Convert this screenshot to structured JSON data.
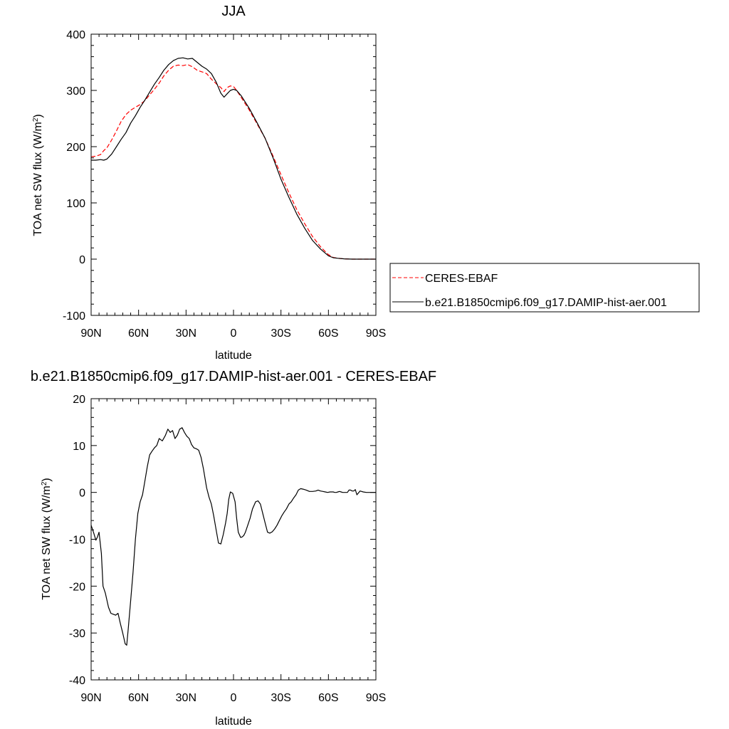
{
  "chart_data": [
    {
      "type": "line",
      "title": "JJA",
      "xlabel": "latitude",
      "ylabel": "TOA net SW flux (W/m",
      "ylabel_sup": "2",
      "ylabel_end": ")",
      "xlim": [
        90,
        -90
      ],
      "ylim": [
        -100,
        400
      ],
      "xticks": [
        {
          "value": 90,
          "label": "90N"
        },
        {
          "value": 60,
          "label": "60N"
        },
        {
          "value": 30,
          "label": "30N"
        },
        {
          "value": 0,
          "label": "0"
        },
        {
          "value": -30,
          "label": "30S"
        },
        {
          "value": -60,
          "label": "60S"
        },
        {
          "value": -90,
          "label": "90S"
        }
      ],
      "yticks": [
        {
          "value": 400,
          "label": "400"
        },
        {
          "value": 300,
          "label": "300"
        },
        {
          "value": 200,
          "label": "200"
        },
        {
          "value": 100,
          "label": "100"
        },
        {
          "value": 0,
          "label": "0"
        },
        {
          "value": -100,
          "label": "-100"
        }
      ],
      "legend": "outside-right",
      "series": [
        {
          "name": "CERES-EBAF",
          "color": "#ff0000",
          "dash": "dashed",
          "x": [
            90,
            87,
            84,
            82,
            80,
            77,
            74,
            71,
            68,
            65,
            62,
            59,
            56,
            53,
            50,
            47,
            44,
            41,
            38,
            35,
            32,
            29,
            26,
            23,
            20,
            17,
            14,
            11,
            8,
            6,
            4,
            2,
            0,
            -2,
            -5,
            -10,
            -15,
            -20,
            -25,
            -30,
            -35,
            -40,
            -45,
            -50,
            -55,
            -60,
            -63,
            -66,
            -70,
            -75,
            -80,
            -85,
            -90
          ],
          "y": [
            182,
            183,
            186,
            193,
            198,
            212,
            228,
            245,
            257,
            265,
            270,
            275,
            282,
            292,
            302,
            313,
            326,
            336,
            343,
            345,
            344,
            346,
            342,
            336,
            333,
            330,
            320,
            312,
            305,
            298,
            305,
            308,
            307,
            300,
            287,
            265,
            240,
            215,
            183,
            150,
            118,
            88,
            63,
            40,
            22,
            8,
            3,
            1.5,
            0.5,
            0,
            0,
            0,
            0
          ]
        },
        {
          "name": "b.e21.B1850cmip6.f09_g17.DAMIP-hist-aer.001",
          "color": "#000000",
          "dash": "solid",
          "x": [
            90,
            87,
            84,
            82,
            80,
            77,
            74,
            71,
            68,
            65,
            62,
            59,
            56,
            53,
            50,
            47,
            44,
            41,
            38,
            35,
            32,
            29,
            26,
            23,
            20,
            17,
            14,
            11,
            8,
            6,
            4,
            2,
            0,
            -2,
            -5,
            -10,
            -15,
            -20,
            -25,
            -30,
            -35,
            -40,
            -45,
            -50,
            -55,
            -60,
            -63,
            -66,
            -70,
            -75,
            -80,
            -85,
            -90
          ],
          "y": [
            176,
            176,
            177,
            176,
            178,
            187,
            200,
            213,
            225,
            242,
            255,
            270,
            283,
            297,
            311,
            323,
            336,
            346,
            353,
            357,
            358,
            356,
            357,
            350,
            343,
            338,
            330,
            315,
            295,
            288,
            294,
            300,
            302,
            300,
            290,
            268,
            242,
            215,
            180,
            142,
            110,
            80,
            55,
            33,
            18,
            6,
            2.5,
            1.5,
            0.5,
            0,
            0,
            0,
            0
          ]
        }
      ]
    },
    {
      "type": "line",
      "title": "b.e21.B1850cmip6.f09_g17.DAMIP-hist-aer.001 - CERES-EBAF",
      "xlabel": "latitude",
      "ylabel": "TOA net SW flux (W/m",
      "ylabel_sup": "2",
      "ylabel_end": ")",
      "xlim": [
        90,
        -90
      ],
      "ylim": [
        -40,
        20
      ],
      "xticks": [
        {
          "value": 90,
          "label": "90N"
        },
        {
          "value": 60,
          "label": "60N"
        },
        {
          "value": 30,
          "label": "30N"
        },
        {
          "value": 0,
          "label": "0"
        },
        {
          "value": -30,
          "label": "30S"
        },
        {
          "value": -60,
          "label": "60S"
        },
        {
          "value": -90,
          "label": "90S"
        }
      ],
      "yticks": [
        {
          "value": 20,
          "label": "20"
        },
        {
          "value": 10,
          "label": "10"
        },
        {
          "value": 0,
          "label": "0"
        },
        {
          "value": -10,
          "label": "-10"
        },
        {
          "value": -20,
          "label": "-20"
        },
        {
          "value": -30,
          "label": "-30"
        },
        {
          "value": -40,
          "label": "-40"
        }
      ],
      "series": [
        {
          "name": "",
          "color": "#000000",
          "dash": "solid",
          "x": [
            90,
            88.5,
            87,
            86,
            85,
            83.5,
            82.5,
            81,
            79,
            77.5,
            76,
            74.5,
            73,
            71.5,
            70,
            68.5,
            67.5,
            66.5,
            65,
            63.5,
            62,
            60.5,
            59,
            57.5,
            56,
            54.5,
            53,
            51.5,
            50,
            48.5,
            47,
            45,
            43,
            41.5,
            40,
            38.5,
            37,
            35.5,
            34,
            32.5,
            31,
            29.5,
            28,
            26.5,
            25,
            23.5,
            22,
            20.5,
            19,
            17,
            15.5,
            14,
            12.5,
            11,
            9.5,
            8,
            6.5,
            5,
            4,
            3,
            2,
            0.5,
            -1,
            -2,
            -3,
            -4.5,
            -5.5,
            -6.5,
            -7.5,
            -9,
            -10.5,
            -12,
            -14,
            -15.5,
            -17,
            -18.5,
            -20,
            -21.5,
            -23,
            -24.5,
            -26,
            -27.5,
            -29,
            -30.5,
            -32,
            -33.5,
            -35,
            -36.5,
            -38,
            -39.5,
            -41,
            -42.5,
            -44,
            -46,
            -48,
            -50,
            -52,
            -53.5,
            -55,
            -56.5,
            -58,
            -59.5,
            -61,
            -62,
            -63,
            -64,
            -65,
            -66,
            -67,
            -68,
            -69,
            -70,
            -71,
            -72,
            -73,
            -74,
            -75,
            -76,
            -77,
            -78,
            -80,
            -82,
            -84,
            -86,
            -88,
            -90
          ],
          "y": [
            -7,
            -8.5,
            -10.2,
            -9.5,
            -8.5,
            -13,
            -20,
            -21.5,
            -24.5,
            -25.8,
            -26,
            -26.2,
            -25.8,
            -28,
            -30,
            -32.3,
            -32.6,
            -29,
            -23,
            -17,
            -10,
            -4.5,
            -2,
            -0.5,
            2.5,
            5.5,
            8,
            8.8,
            9.5,
            10,
            11.5,
            11,
            12.2,
            13.5,
            12.8,
            13.2,
            11.5,
            12.2,
            13.5,
            13.8,
            12.8,
            12,
            11.5,
            10.2,
            9.5,
            9.3,
            9,
            7.5,
            5,
            1,
            -1,
            -2.5,
            -5,
            -8,
            -10.8,
            -11,
            -9,
            -6.5,
            -4.5,
            -1.5,
            0.1,
            -0.2,
            -2,
            -5.5,
            -8.5,
            -9.6,
            -9.5,
            -9.2,
            -8.5,
            -7,
            -5.5,
            -3.5,
            -2,
            -1.8,
            -2.5,
            -4.5,
            -6.5,
            -8.5,
            -8.7,
            -8.4,
            -7.8,
            -7,
            -6,
            -5,
            -4.2,
            -3.5,
            -2.5,
            -2,
            -1.2,
            -0.5,
            0.5,
            0.8,
            0.7,
            0.5,
            0.2,
            0.2,
            0.3,
            0.5,
            0.3,
            0.2,
            0.1,
            0,
            0.1,
            0.1,
            0.1,
            0,
            0,
            0.1,
            0.2,
            0.1,
            0,
            0,
            0,
            0,
            0.5,
            0.5,
            0.3,
            0.3,
            0.6,
            -0.5,
            0.3,
            0.1,
            0,
            0,
            0,
            0
          ]
        }
      ]
    }
  ]
}
